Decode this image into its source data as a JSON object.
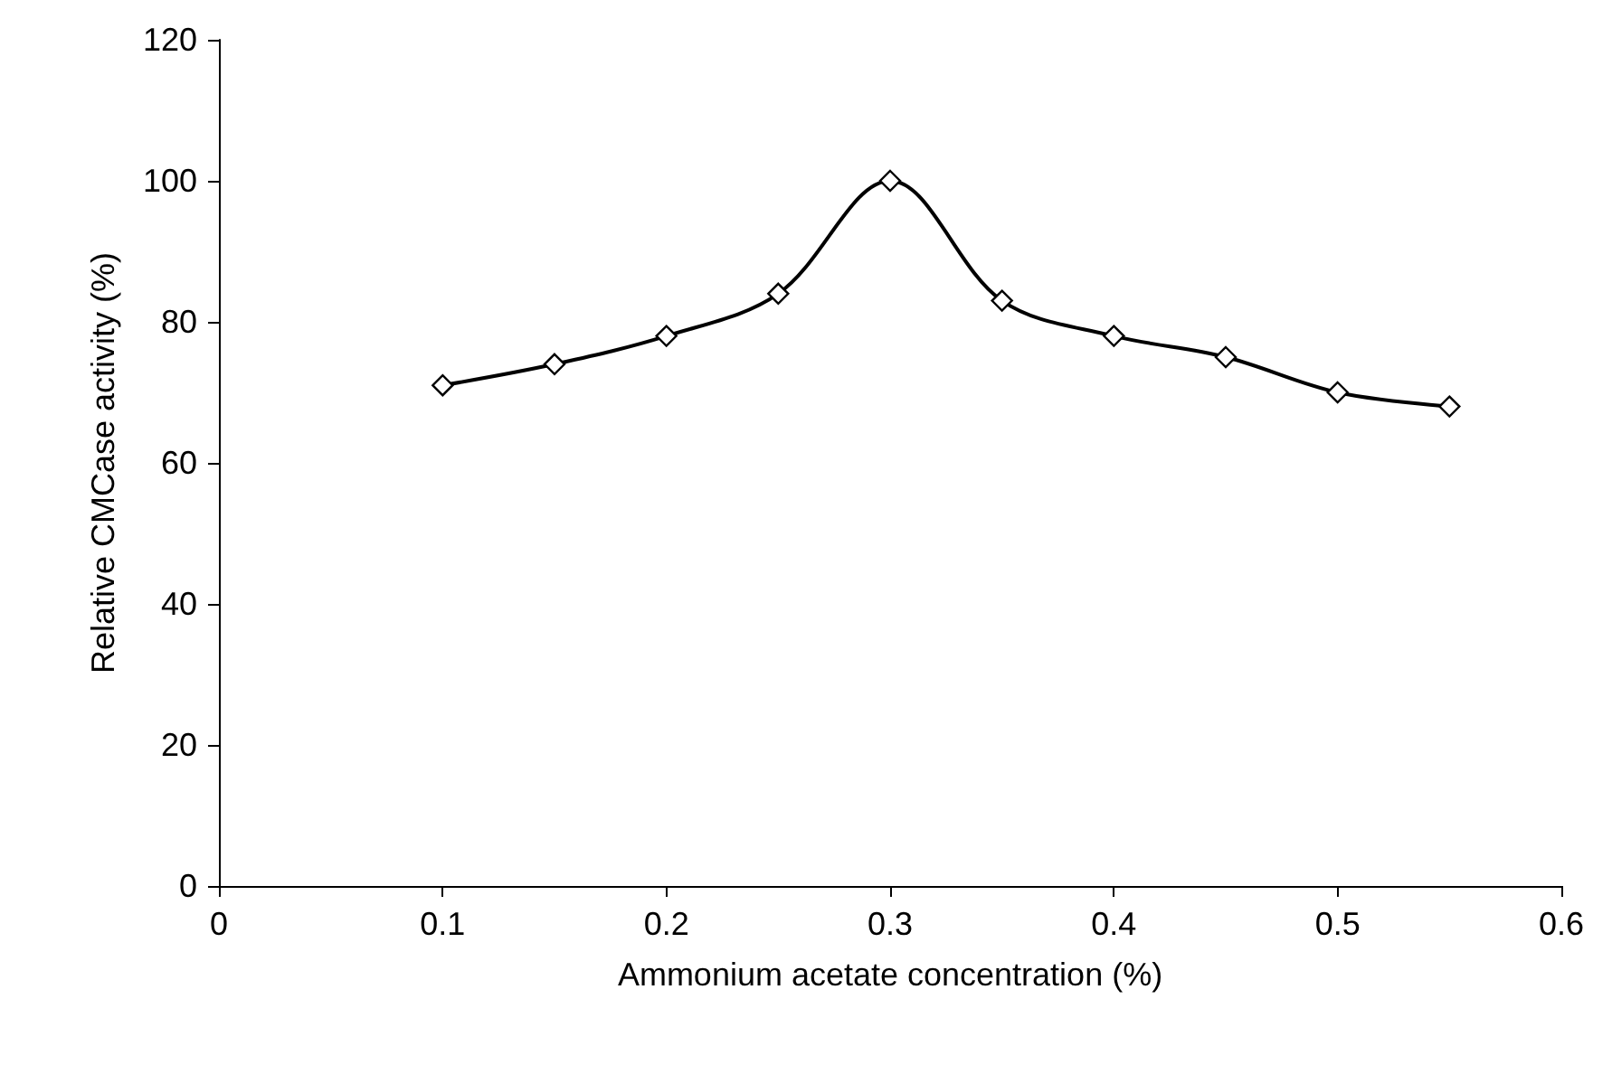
{
  "chart_data": {
    "type": "line",
    "xlabel": "Ammonium acetate concentration (%)",
    "ylabel": "Relative CMCase activity (%)",
    "x": [
      0.1,
      0.15,
      0.2,
      0.25,
      0.3,
      0.35,
      0.4,
      0.45,
      0.5,
      0.55
    ],
    "series": [
      {
        "color": "#000000",
        "values": [
          71,
          74,
          78,
          84,
          100,
          83,
          78,
          75,
          70,
          68
        ]
      }
    ],
    "xlim": [
      0,
      0.6
    ],
    "xticks": [
      0,
      0.1,
      0.2,
      0.3,
      0.4,
      0.5,
      0.6
    ],
    "ylim": [
      0,
      120
    ],
    "yticks": [
      0,
      20,
      40,
      60,
      80,
      100,
      120
    ],
    "grid": false,
    "marker": "diamond",
    "line_style": "solid"
  }
}
